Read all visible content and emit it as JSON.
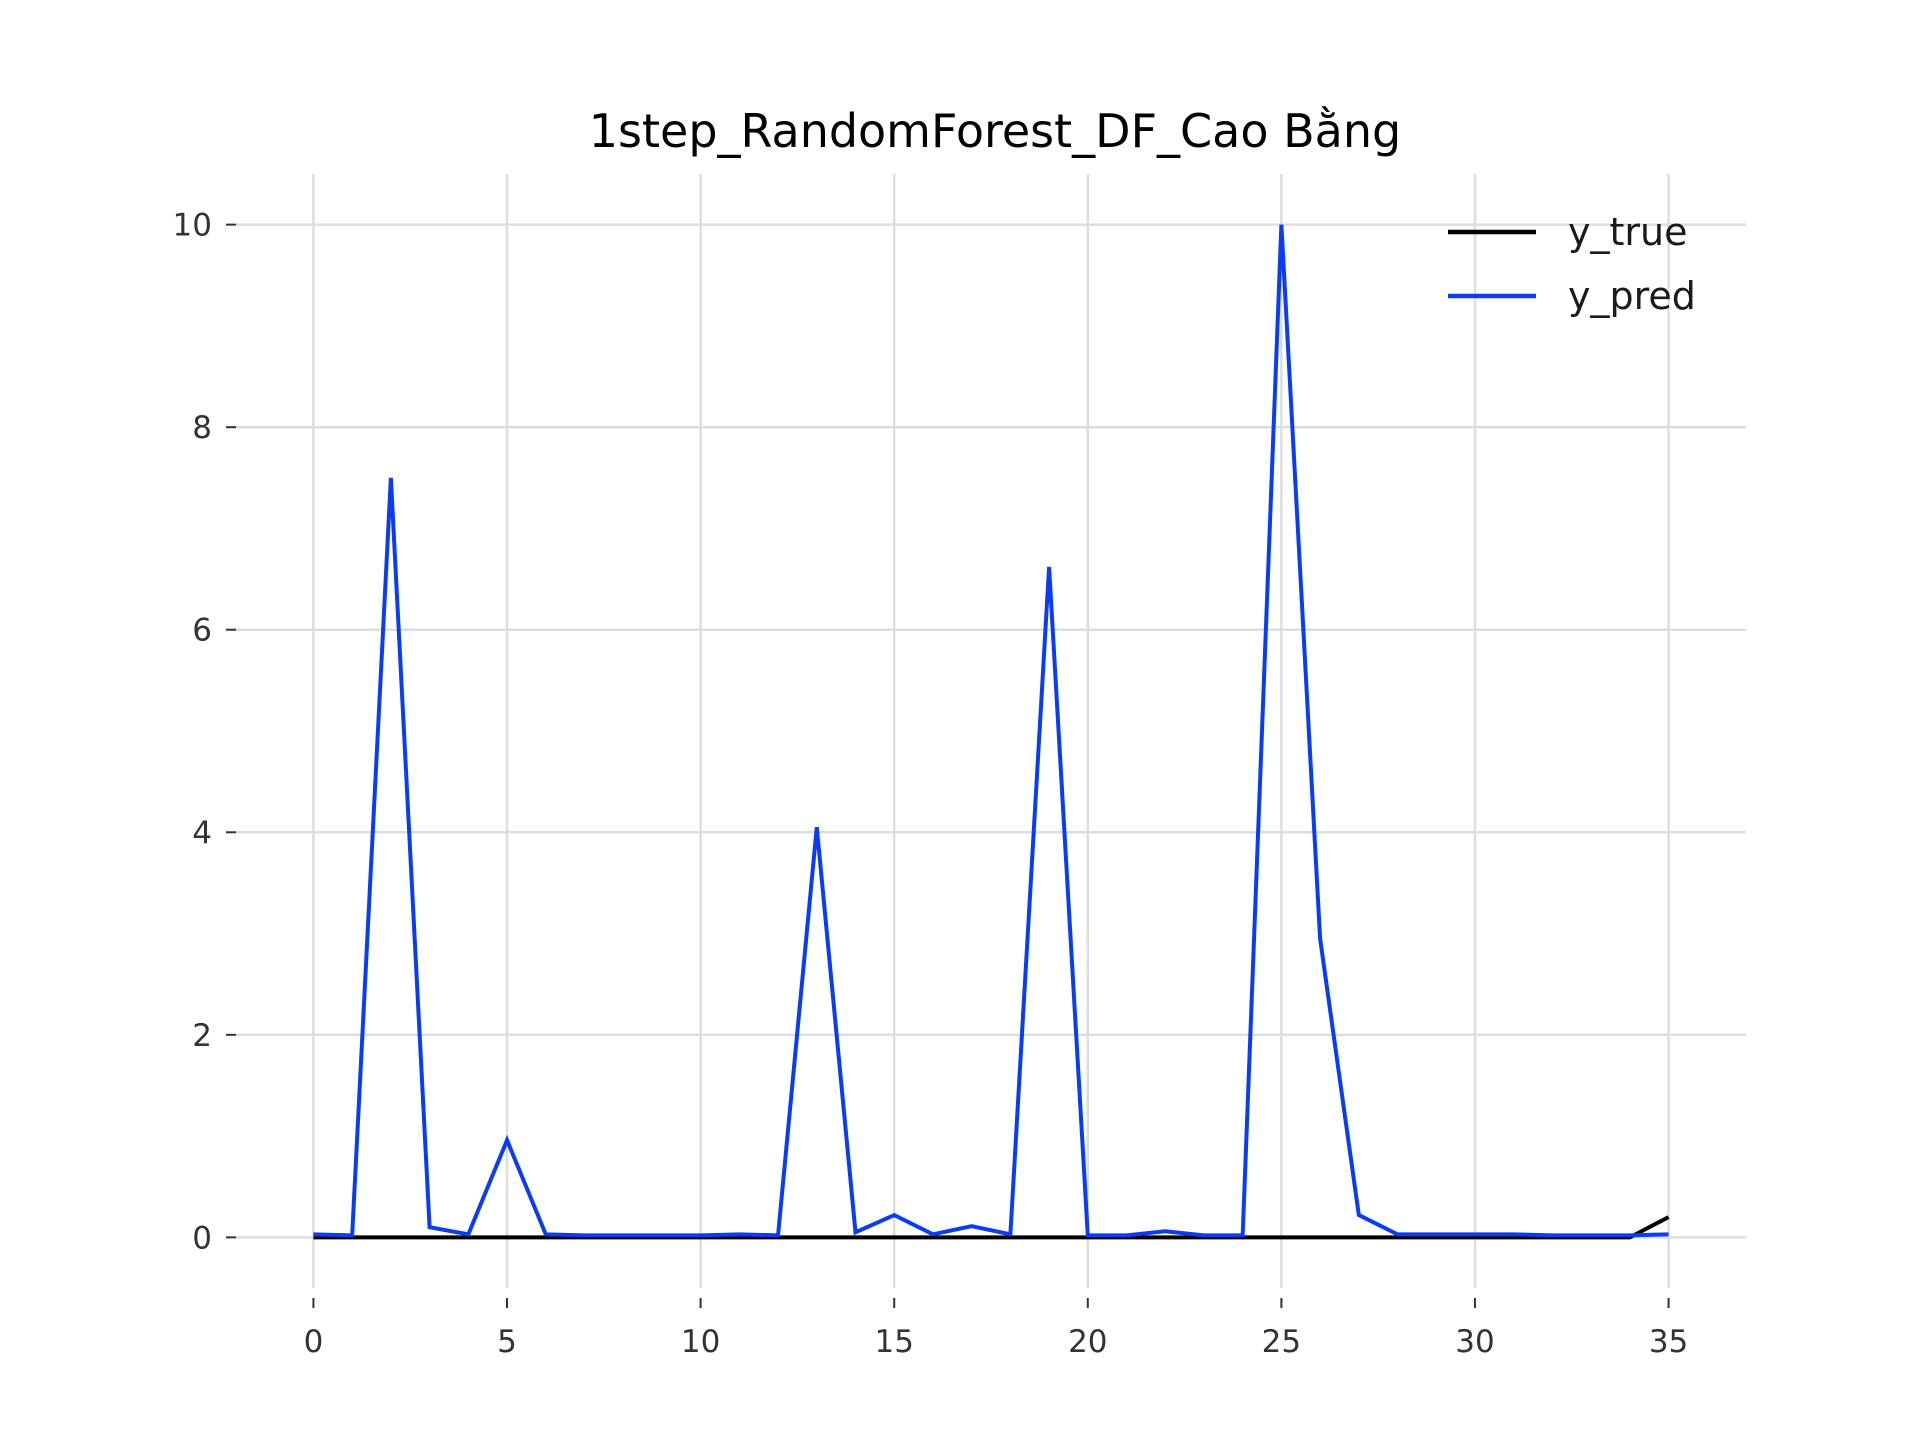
{
  "chart_data": {
    "type": "line",
    "title": "1step_RandomForest_DF_Cao Bằng",
    "xlabel": "",
    "ylabel": "",
    "xlim": [
      -2,
      37
    ],
    "ylim": [
      -0.5,
      10.5
    ],
    "xticks": [
      0,
      5,
      10,
      15,
      20,
      25,
      30,
      35
    ],
    "yticks": [
      0,
      2,
      4,
      6,
      8,
      10
    ],
    "grid": true,
    "legend_position": "top-right",
    "x": [
      0,
      1,
      2,
      3,
      4,
      5,
      6,
      7,
      8,
      9,
      10,
      11,
      12,
      13,
      14,
      15,
      16,
      17,
      18,
      19,
      20,
      21,
      22,
      23,
      24,
      25,
      26,
      27,
      28,
      29,
      30,
      31,
      32,
      33,
      34,
      35
    ],
    "series": [
      {
        "name": "y_true",
        "color": "#000000",
        "values": [
          0,
          0,
          0,
          0,
          0,
          0,
          0,
          0,
          0,
          0,
          0,
          0,
          0,
          0,
          0,
          0,
          0,
          0,
          0,
          0,
          0,
          0,
          0,
          0,
          0,
          0,
          0,
          0,
          0,
          0,
          0,
          0,
          0,
          0,
          0,
          0.2
        ]
      },
      {
        "name": "y_pred",
        "color": "#0a3cf5",
        "values": [
          0.03,
          0.02,
          7.5,
          0.1,
          0.03,
          0.96,
          0.03,
          0.02,
          0.02,
          0.02,
          0.02,
          0.03,
          0.02,
          4.05,
          0.05,
          0.22,
          0.03,
          0.11,
          0.03,
          6.62,
          0.02,
          0.02,
          0.06,
          0.02,
          0.02,
          10.0,
          2.95,
          0.22,
          0.03,
          0.03,
          0.03,
          0.03,
          0.02,
          0.02,
          0.02,
          0.03
        ]
      }
    ]
  }
}
